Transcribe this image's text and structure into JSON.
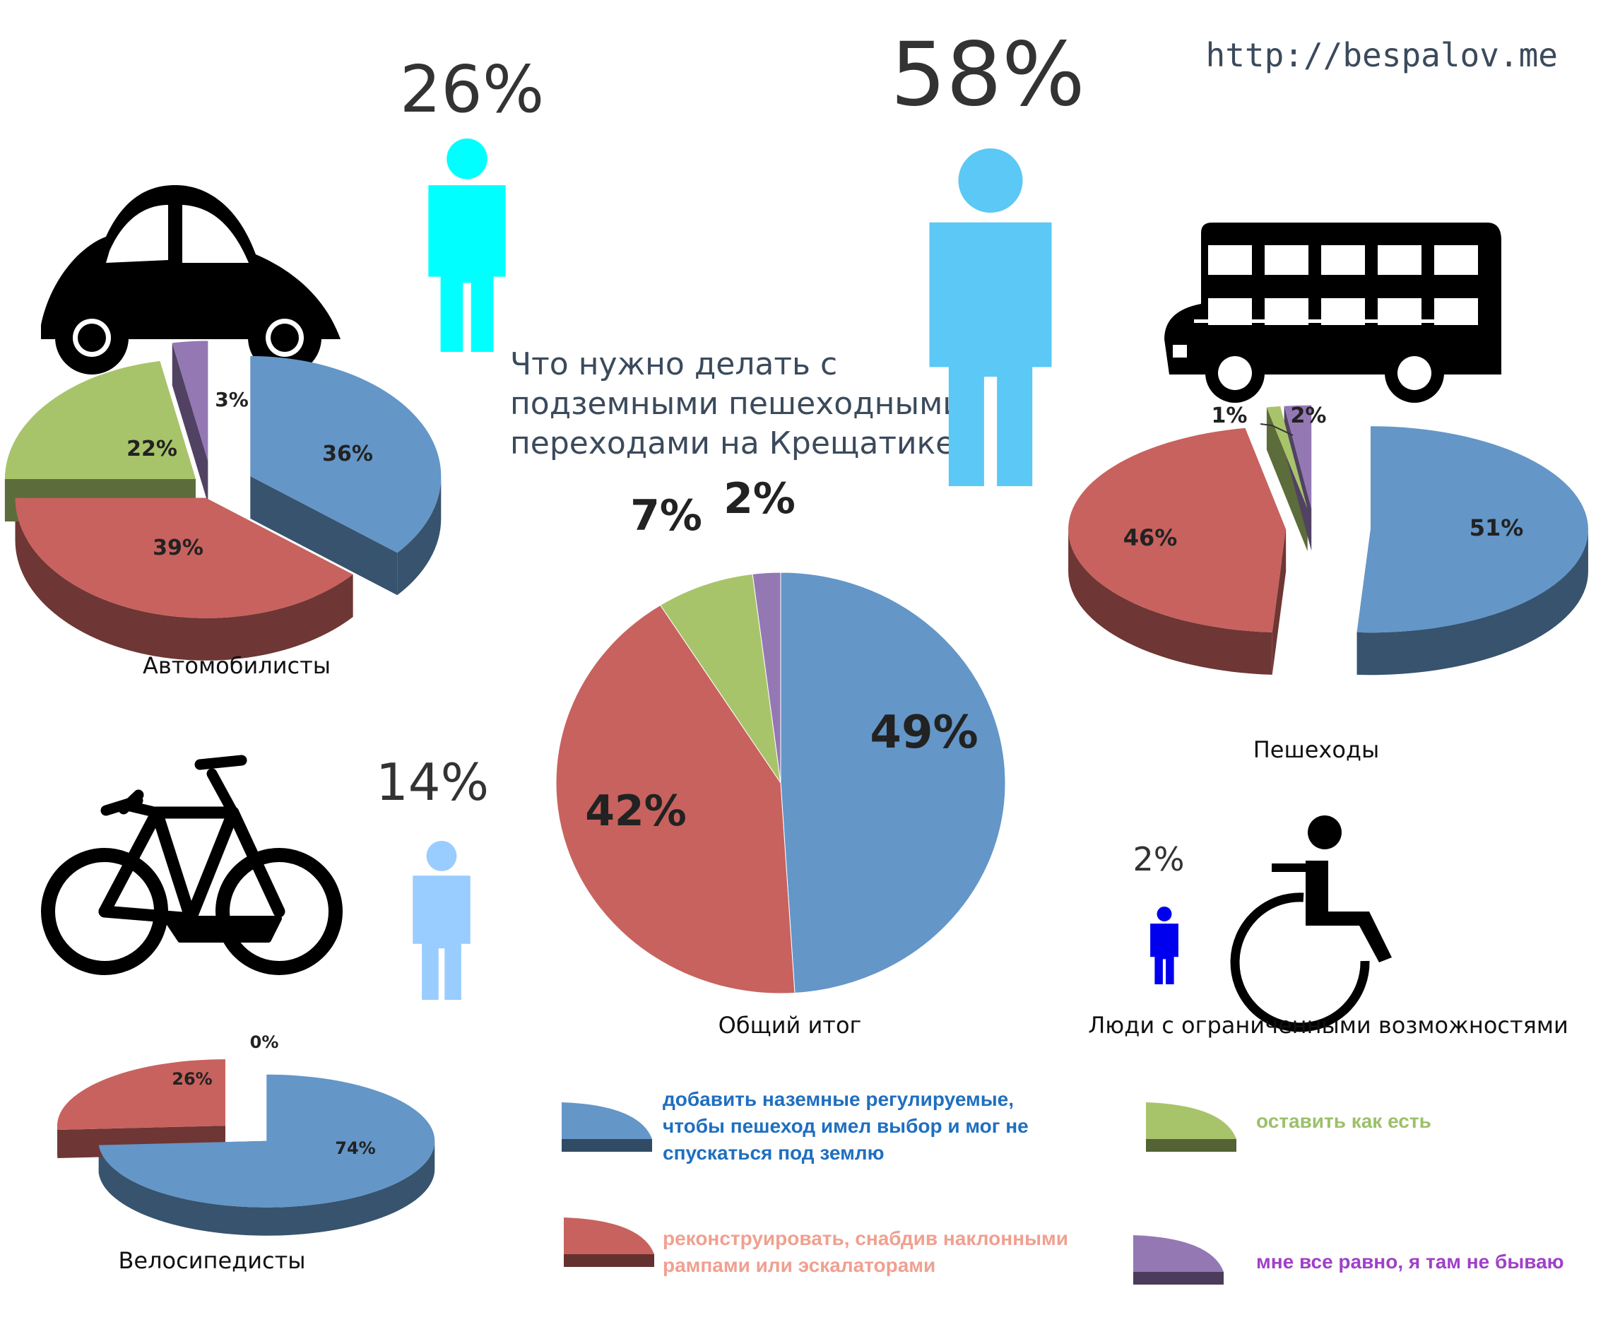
{
  "site_url": "http://bespalov.me",
  "question_lines": [
    "Что нужно делать с",
    "подземными пешеходными",
    "переходами на Крещатике?"
  ],
  "colors": {
    "blue": "#6496c8",
    "red": "#c8625e",
    "green": "#a8c46a",
    "purple": "#9478b4",
    "person_car": "#00ffff",
    "person_ped": "#5bc8f5",
    "person_bike": "#99ccff",
    "person_disabled": "#0000ee",
    "legend_blue_text": "#1f6fc0",
    "legend_red_text": "#f0a090",
    "legend_green_text": "#9cc06a",
    "legend_purple_text": "#a040c8"
  },
  "groups": {
    "motorists": {
      "share": "26%",
      "caption": "Автомобилисты",
      "icon": "car-icon"
    },
    "pedestrians": {
      "share": "58%",
      "caption": "Пешеходы",
      "icon": "bus-icon"
    },
    "cyclists": {
      "share": "14%",
      "caption": "Велосипедисты",
      "icon": "bicycle-icon"
    },
    "disabled": {
      "share": "2%",
      "caption": "Люди с ограниченными возможностями",
      "icon": "wheelchair-icon"
    },
    "total": {
      "caption": "Общий итог"
    }
  },
  "legend": [
    {
      "color": "blue",
      "lines": [
        "добавить наземные регулируемые,",
        "чтобы пешеход имел выбор и мог не",
        "спускаться под землю"
      ]
    },
    {
      "color": "green",
      "lines": [
        "оставить как есть"
      ]
    },
    {
      "color": "red",
      "lines": [
        "реконструировать, снабдив наклонными",
        "рампами или эскалаторами"
      ]
    },
    {
      "color": "purple",
      "lines": [
        "мне все равно, я там не бываю"
      ]
    }
  ],
  "chart_data": [
    {
      "type": "pie",
      "name": "Общий итог",
      "categories": [
        "добавить наземные регулируемые",
        "реконструировать",
        "оставить как есть",
        "мне все равно"
      ],
      "values": [
        49,
        42,
        7,
        2
      ],
      "labels": [
        "49%",
        "42%",
        "7%",
        "2%"
      ]
    },
    {
      "type": "pie",
      "name": "Автомобилисты",
      "categories": [
        "добавить наземные регулируемые",
        "реконструировать",
        "оставить как есть",
        "мне все равно"
      ],
      "values": [
        36,
        39,
        22,
        3
      ],
      "labels": [
        "36%",
        "39%",
        "22%",
        "3%"
      ]
    },
    {
      "type": "pie",
      "name": "Пешеходы",
      "categories": [
        "добавить наземные регулируемые",
        "реконструировать",
        "оставить как есть",
        "мне все равно"
      ],
      "values": [
        51,
        46,
        1,
        2
      ],
      "labels": [
        "51%",
        "46%",
        "1%",
        "2%"
      ]
    },
    {
      "type": "pie",
      "name": "Велосипедисты",
      "categories": [
        "добавить наземные регулируемые",
        "реконструировать",
        "оставить как есть",
        "мне все равно"
      ],
      "values": [
        74,
        26,
        0,
        0
      ],
      "labels": [
        "74%",
        "26%",
        "",
        "0%"
      ]
    }
  ]
}
